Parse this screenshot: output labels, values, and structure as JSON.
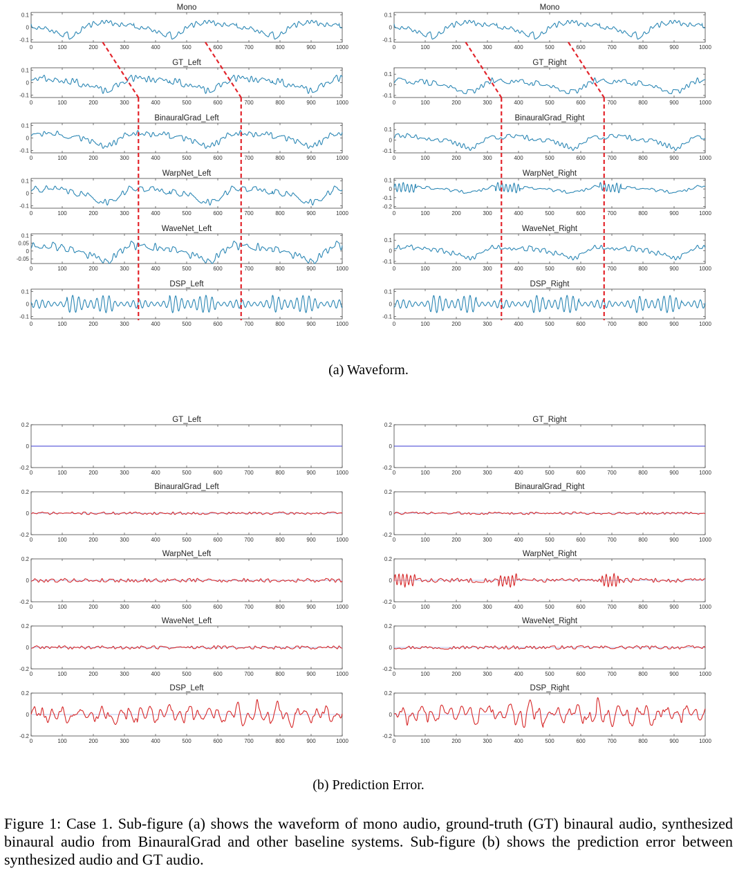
{
  "figure": {
    "waveform_caption": "(a)  Waveform.",
    "error_caption": "(b)  Prediction Error.",
    "caption": "Figure 1: Case 1. Sub-figure (a) shows the waveform of mono audio, ground-truth (GT) binaural audio, synthesized binaural audio from BinauralGrad and other baseline systems. Sub-figure (b) shows the prediction error between synthesized audio and GT audio."
  },
  "colors": {
    "waveform": "#2a86b4",
    "error": "#d62728",
    "flat": "#3a3ad0",
    "zero_line": "#b8c4ee",
    "alignment_marker": "#e3242b"
  },
  "chart_data": [
    {
      "type": "line",
      "section": "waveform",
      "x_ticks": [
        "0",
        "100",
        "200",
        "300",
        "400",
        "500",
        "600",
        "700",
        "800",
        "900",
        "1000"
      ],
      "xlim": [
        0,
        1000
      ],
      "alignment_markers": {
        "left": {
          "mono_x": [
            230,
            560
          ],
          "aligned_x": [
            345,
            675
          ]
        },
        "right": {
          "mono_x": [
            230,
            560
          ],
          "aligned_x": [
            345,
            675
          ]
        }
      },
      "panels": [
        {
          "id": "mono-left",
          "title": "Mono",
          "column": "left",
          "yticks": [
            "0.1",
            "0",
            "-0.1"
          ],
          "ylim": [
            -0.12,
            0.12
          ],
          "style": "mono",
          "shift": 0,
          "seed": 11
        },
        {
          "id": "mono-right",
          "title": "Mono",
          "column": "right",
          "yticks": [
            "0.1",
            "0",
            "-0.1"
          ],
          "ylim": [
            -0.12,
            0.12
          ],
          "style": "mono",
          "shift": 0,
          "seed": 11
        },
        {
          "id": "gt-left",
          "title": "GT_Left",
          "column": "left",
          "yticks": [
            "0.1",
            "0",
            "-0.1"
          ],
          "ylim": [
            -0.12,
            0.12
          ],
          "style": "shifted",
          "shift": 115,
          "seed": 23
        },
        {
          "id": "gt-right",
          "title": "GT_Right",
          "column": "right",
          "yticks": [
            "0.1",
            "0",
            "-0.1"
          ],
          "ylim": [
            -0.12,
            0.16
          ],
          "style": "shifted",
          "shift": 115,
          "seed": 29
        },
        {
          "id": "binauralgrad-left",
          "title": "BinauralGrad_Left",
          "column": "left",
          "yticks": [
            "0.1",
            "0",
            "-0.1"
          ],
          "ylim": [
            -0.12,
            0.12
          ],
          "style": "shifted",
          "shift": 115,
          "seed": 31
        },
        {
          "id": "binauralgrad-right",
          "title": "BinauralGrad_Right",
          "column": "right",
          "yticks": [
            "0.1",
            "0",
            "-0.1"
          ],
          "ylim": [
            -0.12,
            0.16
          ],
          "style": "shifted",
          "shift": 115,
          "seed": 37
        },
        {
          "id": "warpnet-left",
          "title": "WarpNet_Left",
          "column": "left",
          "yticks": [
            "0.1",
            "0",
            "-0.1"
          ],
          "ylim": [
            -0.12,
            0.12
          ],
          "style": "shifted",
          "shift": 115,
          "seed": 41
        },
        {
          "id": "warpnet-right",
          "title": "WarpNet_Right",
          "column": "right",
          "yticks": [
            "0.1",
            "0",
            "-0.1",
            "-0.2"
          ],
          "ylim": [
            -0.22,
            0.12
          ],
          "style": "warp",
          "shift": 115,
          "seed": 43
        },
        {
          "id": "wavenet-left",
          "title": "WaveNet_Left",
          "column": "left",
          "yticks": [
            "0.1",
            "0.05",
            "0",
            "-0.05"
          ],
          "ylim": [
            -0.08,
            0.11
          ],
          "style": "shifted",
          "shift": 115,
          "seed": 47
        },
        {
          "id": "wavenet-right",
          "title": "WaveNet_Right",
          "column": "right",
          "yticks": [
            "0.1",
            "0",
            "-0.1"
          ],
          "ylim": [
            -0.12,
            0.16
          ],
          "style": "shifted",
          "shift": 115,
          "seed": 53
        },
        {
          "id": "dsp-left",
          "title": "DSP_Left",
          "column": "left",
          "yticks": [
            "0.1",
            "0",
            "-0.1"
          ],
          "ylim": [
            -0.12,
            0.12
          ],
          "style": "dsp",
          "shift": 115,
          "seed": 59
        },
        {
          "id": "dsp-right",
          "title": "DSP_Right",
          "column": "right",
          "yticks": [
            "0.1",
            "0",
            "-0.1"
          ],
          "ylim": [
            -0.12,
            0.12
          ],
          "style": "dsp",
          "shift": 115,
          "seed": 61
        }
      ]
    },
    {
      "type": "line",
      "section": "prediction_error",
      "x_ticks": [
        "0",
        "100",
        "200",
        "300",
        "400",
        "500",
        "600",
        "700",
        "800",
        "900",
        "1000"
      ],
      "xlim": [
        0,
        1000
      ],
      "yticks": [
        "0.2",
        "0",
        "-0.2"
      ],
      "ylim": [
        -0.2,
        0.2
      ],
      "panels": [
        {
          "id": "err-gt-left",
          "title": "GT_Left",
          "column": "left",
          "style": "flat",
          "seed": 1
        },
        {
          "id": "err-gt-right",
          "title": "GT_Right",
          "column": "right",
          "style": "flat",
          "seed": 2
        },
        {
          "id": "err-binauralgrad-left",
          "title": "BinauralGrad_Left",
          "column": "left",
          "style": "small",
          "amp": 0.012,
          "seed": 71
        },
        {
          "id": "err-binauralgrad-right",
          "title": "BinauralGrad_Right",
          "column": "right",
          "style": "small",
          "amp": 0.012,
          "seed": 73
        },
        {
          "id": "err-warpnet-left",
          "title": "WarpNet_Left",
          "column": "left",
          "style": "small",
          "amp": 0.018,
          "seed": 79
        },
        {
          "id": "err-warpnet-right",
          "title": "WarpNet_Right",
          "column": "right",
          "style": "warp_err",
          "amp": 0.02,
          "seed": 83
        },
        {
          "id": "err-wavenet-left",
          "title": "WaveNet_Left",
          "column": "left",
          "style": "small",
          "amp": 0.016,
          "seed": 89
        },
        {
          "id": "err-wavenet-right",
          "title": "WaveNet_Right",
          "column": "right",
          "style": "small",
          "amp": 0.016,
          "seed": 97
        },
        {
          "id": "err-dsp-left",
          "title": "DSP_Left",
          "column": "left",
          "style": "dsp_err",
          "amp": 0.09,
          "seed": 101
        },
        {
          "id": "err-dsp-right",
          "title": "DSP_Right",
          "column": "right",
          "style": "dsp_err",
          "amp": 0.1,
          "seed": 103
        }
      ]
    }
  ]
}
